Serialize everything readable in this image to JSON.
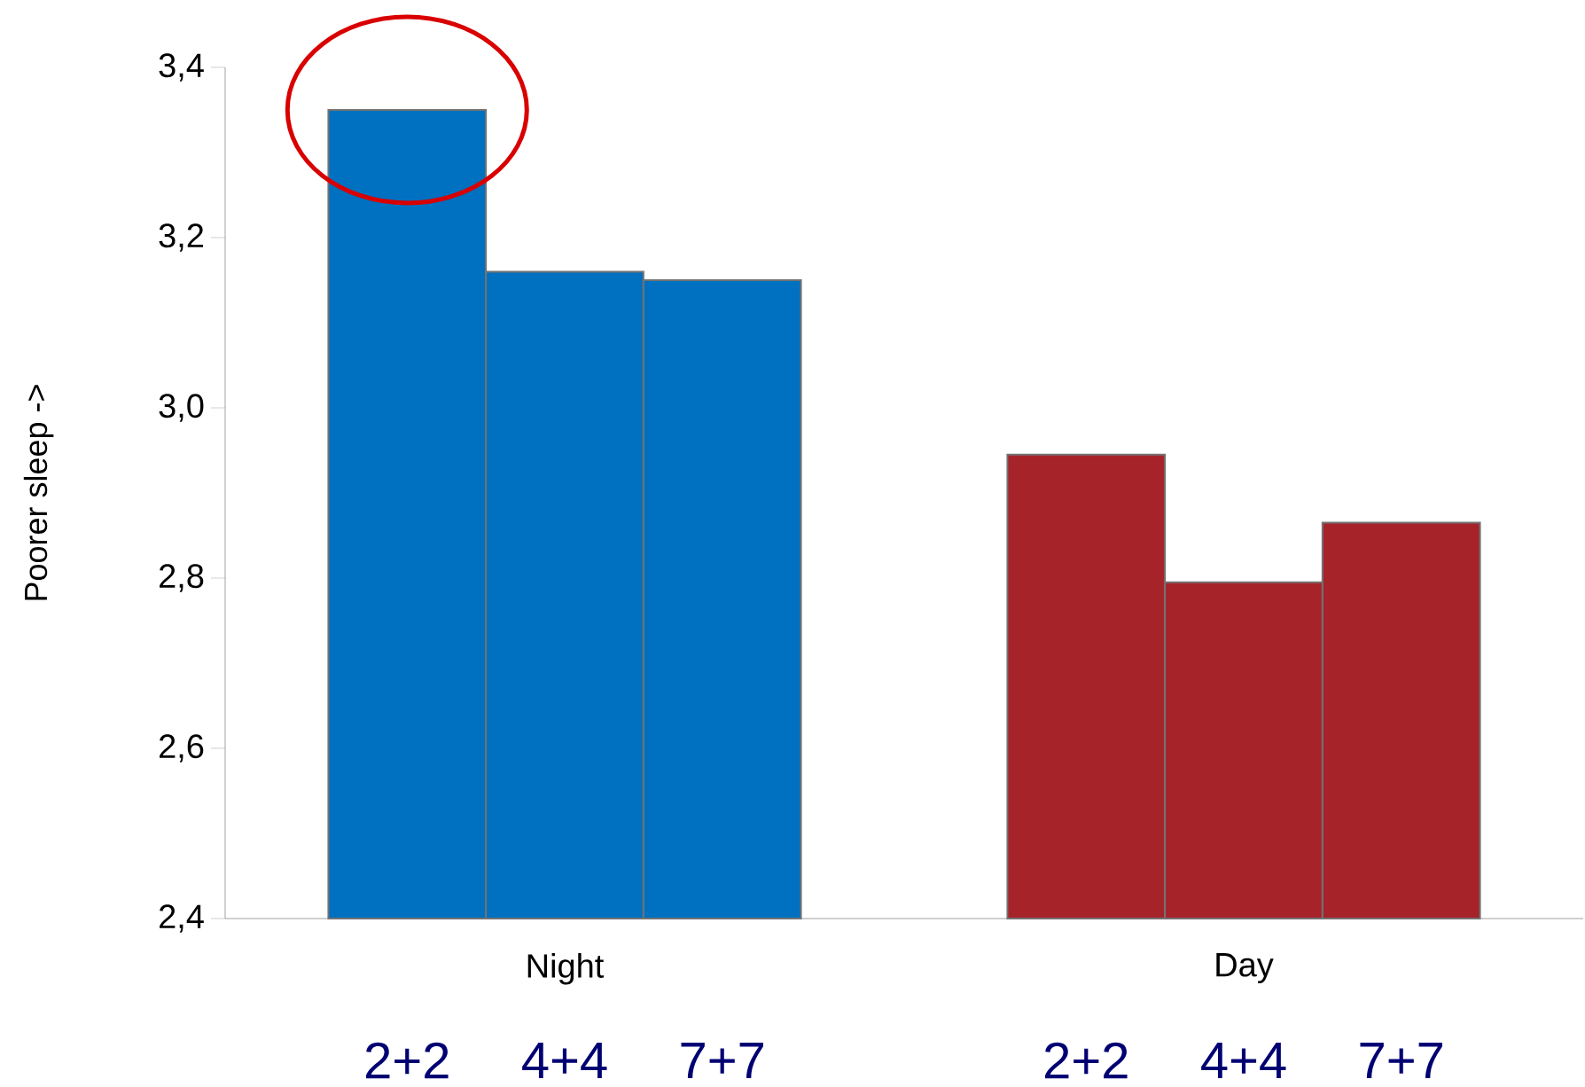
{
  "chart_data": {
    "type": "bar",
    "ylabel": "Poorer sleep ->",
    "categories": [
      "Night",
      "Day"
    ],
    "series": [
      {
        "name": "2+2",
        "colors": [
          "#0070c0",
          "#a6232a"
        ],
        "values": [
          3.35,
          2.945
        ]
      },
      {
        "name": "4+4",
        "colors": [
          "#0070c0",
          "#a6232a"
        ],
        "values": [
          3.16,
          2.795
        ]
      },
      {
        "name": "7+7",
        "colors": [
          "#0070c0",
          "#a6232a"
        ],
        "values": [
          3.15,
          2.865
        ]
      }
    ],
    "ylim": [
      2.4,
      3.4
    ],
    "yticks": [
      {
        "value": 2.4,
        "label": "2,4"
      },
      {
        "value": 2.6,
        "label": "2,6"
      },
      {
        "value": 2.8,
        "label": "2,8"
      },
      {
        "value": 3.0,
        "label": "3,0"
      },
      {
        "value": 3.2,
        "label": "3,2"
      },
      {
        "value": 3.4,
        "label": "3,4"
      }
    ],
    "grid": false
  }
}
